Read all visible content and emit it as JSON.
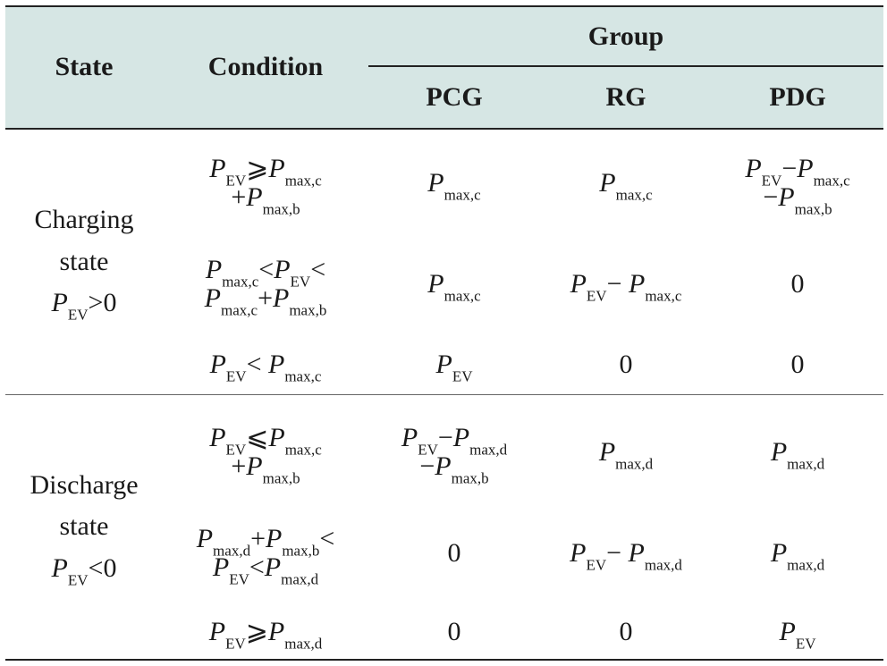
{
  "header": {
    "state": "State",
    "condition": "Condition",
    "group": "Group",
    "pcg": "PCG",
    "rg": "RG",
    "pdg": "PDG"
  },
  "symbols": {
    "P": "P",
    "EV": "EV",
    "maxc": "max,c",
    "maxb": "max,b",
    "maxd": "max,d",
    "zero": "0",
    "geq": "⩾",
    "leq": "⩽",
    "lt": "<",
    "gt": ">",
    "plus": "+",
    "minus": "−",
    "minus2": "− "
  },
  "charging": {
    "line1": "Charging",
    "line2": "state",
    "cond": "P_EV > 0"
  },
  "discharge": {
    "line1": "Discharge",
    "line2": "state",
    "cond": "P_EV < 0"
  }
}
